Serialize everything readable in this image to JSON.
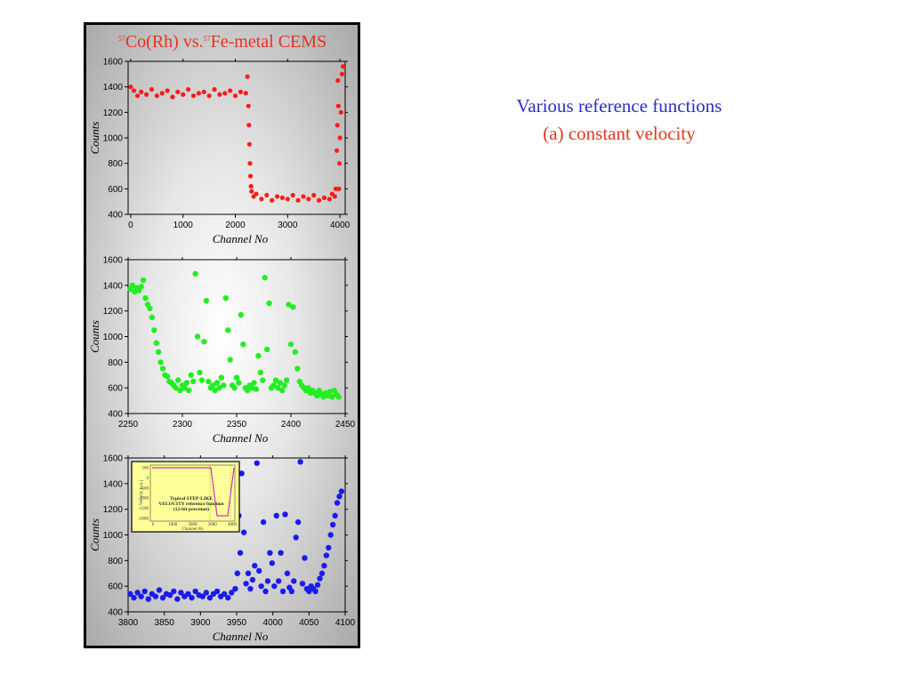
{
  "title": {
    "iso1_mass": "57",
    "iso1_rest": "Co(Rh) vs.",
    "iso2_mass": "57",
    "iso2_rest": "Fe-metal CEMS",
    "color": "#e8321c"
  },
  "caption": {
    "line1": "Various reference functions",
    "line2": "(a) constant velocity",
    "line1_color": "#2b2fc4",
    "line2_color": "#e03a1c"
  },
  "chart_data": [
    {
      "type": "scatter",
      "color": "#ff1a1a",
      "xlabel": "Channel No",
      "ylabel": "Counts",
      "xlim": [
        -50,
        4100
      ],
      "ylim": [
        400,
        1600
      ],
      "xticks": [
        0,
        1000,
        2000,
        3000,
        4000
      ],
      "yticks": [
        400,
        600,
        800,
        1000,
        1200,
        1400,
        1600
      ],
      "grid": false,
      "series": [
        {
          "x": [
            0,
            60,
            130,
            200,
            300,
            400,
            500,
            600,
            700,
            800,
            900,
            1000,
            1100,
            1200,
            1300,
            1400,
            1500,
            1600,
            1700,
            1800,
            1900,
            2000,
            2100,
            2200,
            2230,
            2250,
            2260,
            2270,
            2280,
            2290,
            2300,
            2310,
            2350,
            2400,
            2500,
            2600,
            2700,
            2800,
            2900,
            3000,
            3100,
            3200,
            3300,
            3400,
            3500,
            3600,
            3700,
            3800,
            3850,
            3900,
            3920,
            3940,
            3950,
            3960,
            3970,
            3980,
            3990,
            4000,
            4020,
            4040,
            4060
          ],
          "y": [
            1400,
            1370,
            1330,
            1360,
            1340,
            1380,
            1330,
            1350,
            1370,
            1320,
            1360,
            1340,
            1380,
            1330,
            1350,
            1360,
            1330,
            1380,
            1340,
            1350,
            1370,
            1330,
            1360,
            1350,
            1480,
            1250,
            1100,
            950,
            800,
            700,
            620,
            580,
            540,
            560,
            520,
            550,
            510,
            540,
            530,
            520,
            550,
            510,
            540,
            520,
            550,
            510,
            530,
            520,
            560,
            540,
            600,
            900,
            1100,
            1450,
            1250,
            600,
            800,
            1000,
            1200,
            1500,
            1560
          ]
        }
      ]
    },
    {
      "type": "scatter",
      "color": "#22ee22",
      "xlabel": "Channel No",
      "ylabel": "Counts",
      "xlim": [
        2250,
        2450
      ],
      "ylim": [
        400,
        1600
      ],
      "xticks": [
        2250,
        2300,
        2350,
        2400,
        2450
      ],
      "yticks": [
        400,
        600,
        800,
        1000,
        1200,
        1400,
        1600
      ],
      "grid": false,
      "series": [
        {
          "x": [
            2252,
            2254,
            2256,
            2258,
            2260,
            2262,
            2264,
            2266,
            2268,
            2270,
            2272,
            2274,
            2276,
            2278,
            2280,
            2282,
            2284,
            2286,
            2288,
            2290,
            2292,
            2294,
            2296,
            2298,
            2300,
            2302,
            2304,
            2306,
            2308,
            2310,
            2312,
            2314,
            2316,
            2318,
            2320,
            2322,
            2324,
            2326,
            2328,
            2330,
            2332,
            2334,
            2336,
            2338,
            2340,
            2342,
            2344,
            2346,
            2348,
            2350,
            2352,
            2354,
            2356,
            2358,
            2360,
            2362,
            2364,
            2366,
            2368,
            2370,
            2372,
            2374,
            2376,
            2378,
            2380,
            2382,
            2384,
            2386,
            2388,
            2390,
            2392,
            2394,
            2396,
            2398,
            2400,
            2402,
            2404,
            2406,
            2408,
            2410,
            2412,
            2414,
            2416,
            2418,
            2420,
            2422,
            2424,
            2426,
            2428,
            2430,
            2432,
            2434,
            2436,
            2438,
            2440,
            2442,
            2444
          ],
          "y": [
            1370,
            1400,
            1350,
            1380,
            1360,
            1390,
            1440,
            1300,
            1250,
            1220,
            1150,
            1050,
            950,
            880,
            800,
            750,
            700,
            690,
            650,
            640,
            620,
            600,
            660,
            580,
            620,
            600,
            640,
            580,
            700,
            650,
            1490,
            1000,
            720,
            660,
            960,
            1280,
            650,
            600,
            620,
            580,
            640,
            600,
            680,
            620,
            1300,
            1050,
            820,
            620,
            600,
            680,
            640,
            1170,
            940,
            600,
            580,
            620,
            600,
            640,
            590,
            850,
            720,
            660,
            1460,
            900,
            1260,
            600,
            620,
            660,
            600,
            640,
            580,
            620,
            660,
            1250,
            940,
            1230,
            880,
            750,
            650,
            620,
            600,
            580,
            600,
            560,
            580,
            560,
            540,
            580,
            550,
            530,
            560,
            540,
            570,
            530,
            580,
            550,
            530
          ]
        }
      ]
    },
    {
      "type": "scatter",
      "color": "#1a1aee",
      "xlabel": "Channel No",
      "ylabel": "Counts",
      "xlim": [
        3800,
        4100
      ],
      "ylim": [
        400,
        1600
      ],
      "xticks": [
        3800,
        3850,
        3900,
        3950,
        4000,
        4050,
        4100
      ],
      "yticks": [
        400,
        600,
        800,
        1000,
        1200,
        1400,
        1600
      ],
      "grid": false,
      "series": [
        {
          "x": [
            3803,
            3808,
            3813,
            3818,
            3823,
            3828,
            3833,
            3838,
            3843,
            3848,
            3853,
            3858,
            3863,
            3868,
            3873,
            3878,
            3883,
            3888,
            3893,
            3898,
            3903,
            3908,
            3913,
            3918,
            3923,
            3928,
            3933,
            3938,
            3943,
            3948,
            3951,
            3953,
            3955,
            3957,
            3960,
            3963,
            3966,
            3969,
            3972,
            3975,
            3978,
            3981,
            3984,
            3987,
            3990,
            3993,
            3996,
            3999,
            4002,
            4005,
            4008,
            4011,
            4014,
            4017,
            4020,
            4023,
            4026,
            4029,
            4032,
            4035,
            4038,
            4041,
            4044,
            4047,
            4050,
            4053,
            4056,
            4059,
            4062,
            4065,
            4068,
            4071,
            4074,
            4077,
            4080,
            4083,
            4086,
            4089,
            4092,
            4095
          ],
          "y": [
            540,
            510,
            550,
            520,
            560,
            500,
            540,
            520,
            570,
            510,
            540,
            530,
            560,
            500,
            550,
            520,
            540,
            510,
            560,
            530,
            520,
            550,
            510,
            540,
            560,
            520,
            540,
            510,
            550,
            580,
            700,
            1150,
            860,
            1480,
            1020,
            620,
            700,
            580,
            650,
            760,
            1560,
            720,
            600,
            1100,
            560,
            640,
            860,
            780,
            600,
            1150,
            640,
            860,
            560,
            1160,
            700,
            590,
            560,
            640,
            980,
            1100,
            1570,
            620,
            820,
            580,
            560,
            600,
            580,
            560,
            610,
            660,
            700,
            760,
            840,
            900,
            1000,
            1080,
            1150,
            1250,
            1300,
            1340
          ]
        }
      ],
      "inset": {
        "title_line1": "Typical STEP-LIKE",
        "title_line2": "VELOCITY reference function",
        "title_line3": "(12-bit precision)",
        "xlabel": "Channel No",
        "ylabel": "Velocity [a.u.]",
        "xticks": [
          "0",
          "1000",
          "2000",
          "3000",
          "4000"
        ],
        "yticks": [
          "500",
          "0",
          "-500",
          "-1000",
          "-1500",
          "-2000"
        ],
        "line_color": "#cc33cc",
        "dash_color": "#99cc33",
        "bg_color": "#ffff99"
      }
    }
  ]
}
